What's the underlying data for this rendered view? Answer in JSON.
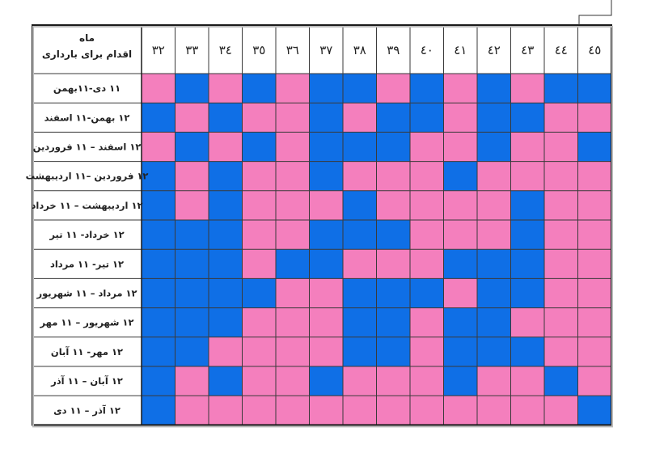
{
  "chart_data": {
    "type": "heatmap",
    "corner_header": [
      "ماه",
      "اقدام برای بارداری"
    ],
    "columns": [
      "٣٢",
      "٣٣",
      "٣٤",
      "٣٥",
      "٣٦",
      "٣٧",
      "٣٨",
      "٣٩",
      "٤٠",
      "٤١",
      "٤٢",
      "٤٣",
      "٤٤",
      "٤٥"
    ],
    "rows": [
      "١١ دی-١١بهمن",
      "١٢ بهمن-١١ اسفند",
      "١٢ اسفند – ١١ فروردین",
      "١٢ فروردین –١١ اردیبهشت",
      "١٢ اردیبهشت – ١١ خرداد",
      "١٢ خرداد- ١١ تیر",
      "١٢ تیر- ١١ مرداد",
      "١٢ مرداد – ١١ شهریور",
      "١٢ شهریور – ١١ مهر",
      "١٢ مهر- ١١ آبان",
      "١٢ آبان – ١١ آذر",
      "١٢ آذر – ١١ دی"
    ],
    "categories": [
      "pink",
      "blue"
    ],
    "values": [
      [
        0,
        1,
        0,
        1,
        0,
        1,
        1,
        0,
        1,
        0,
        1,
        0,
        1,
        1
      ],
      [
        1,
        0,
        1,
        0,
        0,
        1,
        0,
        1,
        1,
        0,
        1,
        1,
        0,
        0
      ],
      [
        0,
        1,
        0,
        1,
        0,
        1,
        1,
        1,
        0,
        0,
        1,
        0,
        0,
        1
      ],
      [
        1,
        0,
        1,
        0,
        0,
        1,
        0,
        0,
        0,
        1,
        0,
        0,
        0,
        0
      ],
      [
        1,
        0,
        1,
        0,
        0,
        0,
        1,
        0,
        0,
        0,
        0,
        1,
        0,
        0
      ],
      [
        1,
        1,
        1,
        0,
        0,
        1,
        1,
        1,
        0,
        0,
        0,
        1,
        0,
        0
      ],
      [
        1,
        1,
        1,
        0,
        1,
        1,
        0,
        0,
        0,
        1,
        1,
        1,
        0,
        0
      ],
      [
        1,
        1,
        1,
        1,
        0,
        0,
        1,
        1,
        1,
        0,
        1,
        1,
        0,
        0
      ],
      [
        1,
        1,
        1,
        0,
        0,
        0,
        1,
        1,
        0,
        1,
        1,
        0,
        0,
        0
      ],
      [
        1,
        1,
        0,
        0,
        0,
        0,
        1,
        1,
        0,
        1,
        1,
        1,
        0,
        0
      ],
      [
        1,
        0,
        1,
        0,
        0,
        1,
        0,
        0,
        0,
        1,
        0,
        0,
        1,
        0
      ],
      [
        1,
        0,
        0,
        0,
        0,
        0,
        0,
        0,
        0,
        0,
        0,
        0,
        0,
        1
      ]
    ],
    "colors": {
      "pink": "#f47fbd",
      "blue": "#0f6fe6",
      "border": "#1a1a1a",
      "grid": "#3a3a3a"
    }
  }
}
